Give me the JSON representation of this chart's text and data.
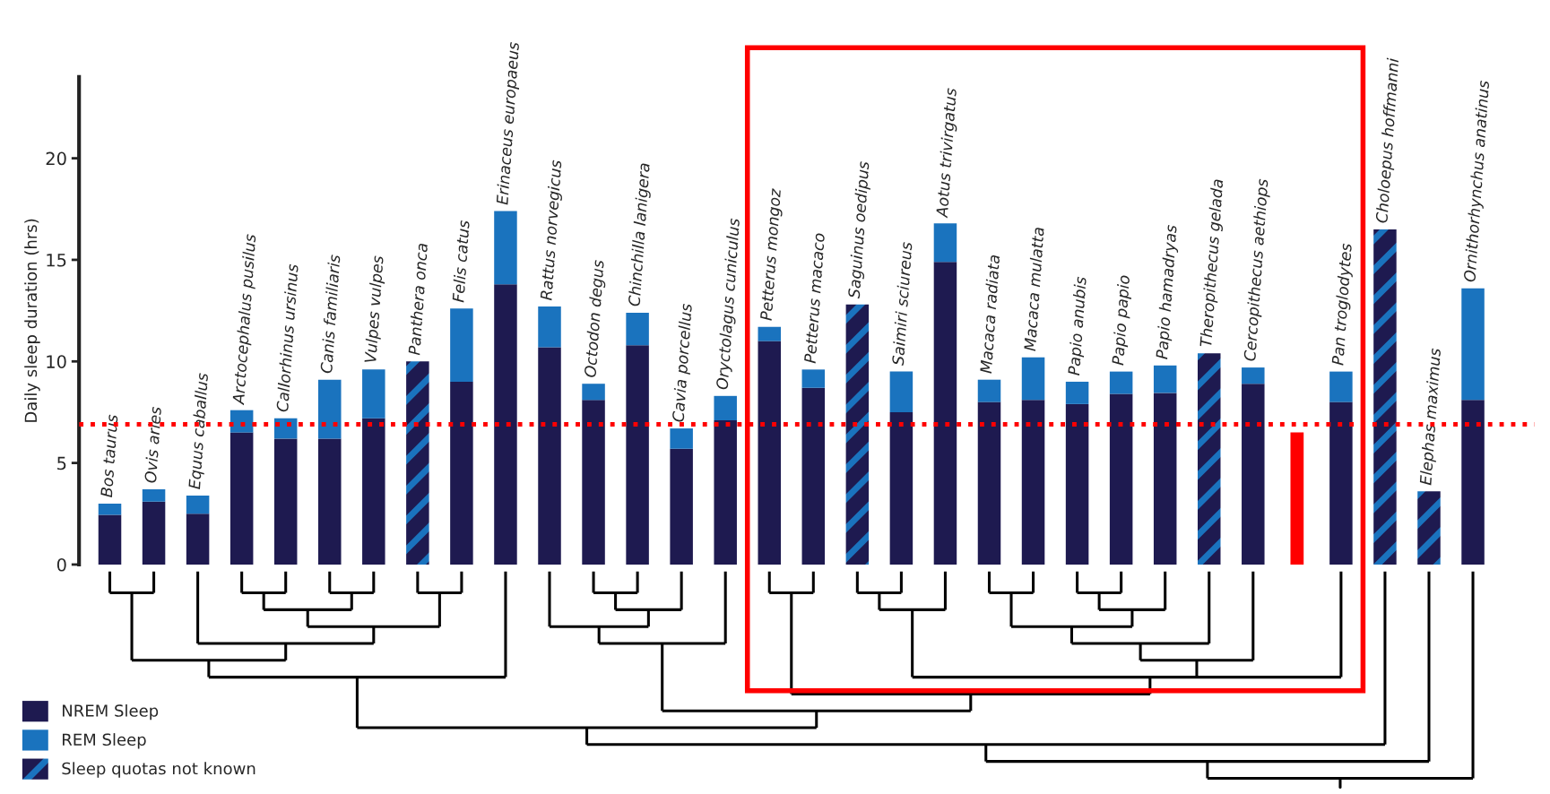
{
  "chart_data": {
    "type": "bar",
    "ylabel": "Daily sleep duration (hrs)",
    "categories": [
      "Bos taurus",
      "Ovis aries",
      "Equus caballus",
      "Arctocephalus pusilus",
      "Callorhinus ursinus",
      "Canis familiaris",
      "Vulpes vulpes",
      "Panthera onca",
      "Felis catus",
      "Erinaceus europaeus",
      "Rattus norvegicus",
      "Octodon degus",
      "Chinchilla lanigera",
      "Cavia porcellus",
      "Oryctolagus cuniculus",
      "Petterus mongoz",
      "Petterus macaco",
      "Saguinus oedipus",
      "Saimiri sciureus",
      "Aotus trivirgatus",
      "Macaca radiata",
      "Macaca mulatta",
      "Papio anubis",
      "Papio papio",
      "Papio hamadryas",
      "Theropithecus gelada",
      "Cercopithecus aethiops",
      null,
      "Pan troglodytes",
      "Choloepus hoffmanni",
      "Elephas maximus",
      "Ornithorhynchus anatinus"
    ],
    "stacked": true,
    "series": [
      {
        "name": "NREM Sleep",
        "color": "#1e1a50",
        "values": [
          2.45,
          3.1,
          2.5,
          6.5,
          6.2,
          6.2,
          7.2,
          null,
          9.0,
          13.8,
          10.7,
          8.1,
          10.8,
          5.7,
          7.1,
          11.0,
          8.7,
          null,
          7.5,
          14.9,
          8.0,
          8.1,
          7.9,
          8.4,
          8.45,
          null,
          8.9,
          null,
          8.0,
          null,
          null,
          8.1
        ]
      },
      {
        "name": "REM Sleep",
        "color": "#1a73be",
        "values": [
          0.55,
          0.6,
          0.9,
          1.1,
          1.0,
          2.9,
          2.4,
          null,
          3.6,
          3.6,
          2.0,
          0.8,
          1.6,
          1.0,
          1.2,
          0.7,
          0.9,
          null,
          2.0,
          1.9,
          1.1,
          2.1,
          1.1,
          1.1,
          1.35,
          null,
          0.8,
          null,
          1.5,
          null,
          null,
          5.5
        ]
      },
      {
        "name": "Sleep quotas not known",
        "color": "#1e1a50",
        "values": [
          null,
          null,
          null,
          null,
          null,
          null,
          null,
          10.0,
          null,
          null,
          null,
          null,
          null,
          null,
          null,
          null,
          null,
          12.8,
          null,
          null,
          null,
          null,
          null,
          null,
          null,
          10.4,
          null,
          null,
          null,
          16.5,
          3.6,
          null
        ]
      },
      {
        "color": "#ff0000",
        "values": [
          null,
          null,
          null,
          null,
          null,
          null,
          null,
          null,
          null,
          null,
          null,
          null,
          null,
          null,
          null,
          null,
          null,
          null,
          null,
          null,
          null,
          null,
          null,
          null,
          null,
          null,
          null,
          6.5,
          null,
          null,
          null,
          null
        ]
      }
    ],
    "ylim": [
      0,
      24
    ],
    "yticks": [
      0,
      5,
      10,
      15,
      20
    ],
    "ref_lines": [
      {
        "axis": "y",
        "value": 6.9,
        "color": "#ff0000",
        "line_style": "dotted"
      }
    ],
    "legend": "bottom left",
    "grid": false
  }
}
